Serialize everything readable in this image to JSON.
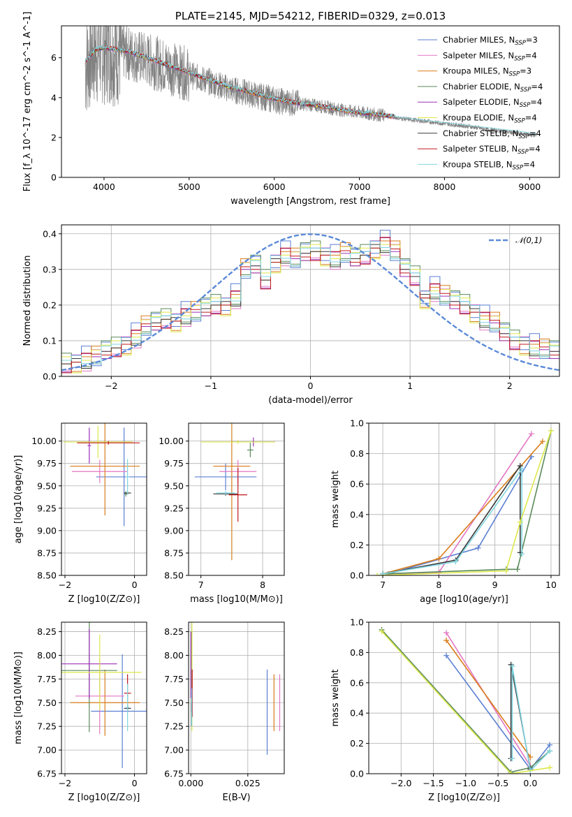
{
  "chart_data": [
    {
      "type": "line",
      "title": "PLATE=2145, MJD=54212, FIBERID=0329, z=0.013",
      "xlabel": "wavelength [Angstrom, rest frame]",
      "ylabel": "Flux [f_λ 10^-17 erg cm^-2 s^-1 A^-1]",
      "xlim": [
        3500,
        9350
      ],
      "ylim": [
        0,
        7.6
      ],
      "xticks": [
        "4000",
        "5000",
        "6000",
        "7000",
        "8000",
        "9000"
      ],
      "yticks": [
        "0",
        "2",
        "4",
        "6"
      ],
      "grid": false,
      "legend_position": "top-right",
      "observed_spectrum": {
        "color": "#808080",
        "x": [
          3780,
          3850,
          3950,
          4050,
          4150,
          4300,
          4500,
          4700,
          4900,
          5100,
          5300,
          5500,
          5700,
          5900,
          6100,
          6300,
          6500,
          6700,
          6900,
          7100,
          7300,
          7500,
          7700,
          7900,
          8100,
          8300,
          8500,
          8700,
          8900,
          9080
        ],
        "y": [
          5.6,
          6.2,
          6.4,
          6.4,
          6.3,
          6.2,
          5.9,
          5.6,
          5.3,
          5.0,
          4.7,
          4.4,
          4.2,
          4.0,
          3.8,
          3.7,
          3.6,
          3.45,
          3.3,
          3.2,
          3.1,
          2.95,
          2.85,
          2.75,
          2.65,
          2.55,
          2.4,
          2.3,
          2.2,
          2.1
        ]
      },
      "series": [
        {
          "name": "Chabrier MILES, N_SSP=3",
          "color": "#5b7fd3"
        },
        {
          "name": "Salpeter MILES, N_SSP=4",
          "color": "#e377c2"
        },
        {
          "name": "Kroupa MILES, N_SSP=3",
          "color": "#d97d1a"
        },
        {
          "name": "Chabrier ELODIE, N_SSP=4",
          "color": "#5a8a5a"
        },
        {
          "name": "Salpeter ELODIE, N_SSP=4",
          "color": "#9b30b9"
        },
        {
          "name": "Kroupa ELODIE, N_SSP=4",
          "color": "#dde84a"
        },
        {
          "name": "Chabrier STELIB, N_SSP=4",
          "color": "#3a3a3a"
        },
        {
          "name": "Salpeter STELIB, N_SSP=4",
          "color": "#c0191e"
        },
        {
          "name": "Kroupa STELIB, N_SSP=4",
          "color": "#7fd6e0"
        }
      ],
      "model_x": [
        3780,
        3900,
        4000,
        4100,
        4300,
        4500,
        4700,
        4900,
        5100,
        5300,
        5500,
        5700,
        5900,
        6100,
        6300,
        6500,
        6700,
        6900,
        7100,
        7300,
        7420
      ],
      "model_y": [
        5.8,
        6.4,
        6.5,
        6.45,
        6.3,
        6.0,
        5.7,
        5.4,
        5.1,
        4.8,
        4.5,
        4.3,
        4.05,
        3.85,
        3.7,
        3.6,
        3.45,
        3.3,
        3.2,
        3.1,
        3.05
      ],
      "stelib_tail": {
        "x": [
          7420,
          7700,
          8000,
          8300,
          8600,
          8900,
          9080
        ],
        "y": [
          3.05,
          2.9,
          2.75,
          2.6,
          2.45,
          2.3,
          2.2
        ]
      }
    },
    {
      "type": "bar",
      "xlabel": "(data-model)/error",
      "ylabel": "Normed distribution",
      "xlim": [
        -2.5,
        2.5
      ],
      "ylim": [
        0,
        0.425
      ],
      "xticks": [
        "−2",
        "−1",
        "0",
        "1",
        "2"
      ],
      "yticks": [
        "0.0",
        "0.1",
        "0.2",
        "0.3",
        "0.4"
      ],
      "grid": true,
      "legend_position": "top-right",
      "reference_curve": {
        "name": "𝒩(0,1)",
        "color": "#5b8ad8",
        "style": "dashed"
      },
      "bin_edges_start": -2.5,
      "bin_width": 0.1,
      "histogram": [
        0.035,
        0.04,
        0.045,
        0.055,
        0.07,
        0.08,
        0.09,
        0.11,
        0.14,
        0.15,
        0.16,
        0.155,
        0.17,
        0.18,
        0.19,
        0.2,
        0.2,
        0.22,
        0.3,
        0.31,
        0.27,
        0.32,
        0.34,
        0.33,
        0.345,
        0.35,
        0.34,
        0.33,
        0.345,
        0.33,
        0.34,
        0.36,
        0.37,
        0.35,
        0.3,
        0.28,
        0.22,
        0.24,
        0.225,
        0.21,
        0.2,
        0.18,
        0.16,
        0.15,
        0.12,
        0.1,
        0.09,
        0.08,
        0.075,
        0.07
      ],
      "series": [
        {
          "color": "#5b7fd3",
          "offsets": [
            0.01,
            -0.01,
            0.02,
            -0.02,
            0.015
          ]
        },
        {
          "color": "#e377c2",
          "offsets": [
            -0.01,
            0.02,
            -0.02,
            0.01,
            0.0
          ]
        },
        {
          "color": "#d97d1a",
          "offsets": [
            0.0,
            -0.015,
            0.01,
            0.02,
            -0.01
          ]
        },
        {
          "color": "#5a8a5a",
          "offsets": [
            0.015,
            0.0,
            -0.01,
            -0.015,
            0.02
          ]
        },
        {
          "color": "#9b30b9",
          "offsets": [
            -0.015,
            0.01,
            0.015,
            0.0,
            -0.02
          ]
        },
        {
          "color": "#dde84a",
          "offsets": [
            0.02,
            -0.02,
            0.0,
            0.015,
            0.01
          ]
        },
        {
          "color": "#3a3a3a",
          "offsets": [
            0.0,
            0.01,
            -0.015,
            -0.01,
            0.0
          ]
        },
        {
          "color": "#c0191e",
          "offsets": [
            -0.02,
            0.0,
            0.02,
            0.005,
            -0.005
          ]
        },
        {
          "color": "#7fd6e0",
          "offsets": [
            0.005,
            0.015,
            -0.005,
            -0.02,
            0.01
          ]
        }
      ]
    },
    {
      "type": "scatter",
      "panel": "age-vs-Z",
      "xlabel": "Z [log10(Z/Z⊙)]",
      "ylabel": "age  [log10(age/yr)]",
      "xlim": [
        -2.1,
        0.35
      ],
      "ylim": [
        8.5,
        10.2
      ],
      "xticks": [
        "−2",
        "0"
      ],
      "yticks": [
        "8.50",
        "8.75",
        "9.00",
        "9.25",
        "9.50",
        "9.75",
        "10.00"
      ],
      "grid": true,
      "points": [
        {
          "color": "#5b7fd3",
          "x": -0.3,
          "y": 9.6,
          "xerr": 0.8,
          "yerr": 0.55
        },
        {
          "color": "#e377c2",
          "x": -1.0,
          "y": 9.66,
          "xerr": 0.8,
          "yerr": 0.13
        },
        {
          "color": "#d97d1a",
          "x": -0.85,
          "y": 9.72,
          "xerr": 1.0,
          "yerr": 0.55
        },
        {
          "color": "#5a8a5a",
          "x": -0.25,
          "y": 9.41,
          "xerr": 0.05,
          "yerr": 0.03
        },
        {
          "color": "#9b30b9",
          "x": -1.3,
          "y": 9.95,
          "xerr": 0.05,
          "yerr": 0.2
        },
        {
          "color": "#dde84a",
          "x": -1.05,
          "y": 9.99,
          "xerr": 1.0,
          "yerr": 0.18
        },
        {
          "color": "#3a3a3a",
          "x": -0.2,
          "y": 9.42,
          "xerr": 0.1,
          "yerr": 0.02
        },
        {
          "color": "#c0191e",
          "x": -0.75,
          "y": 9.98,
          "xerr": 0.9,
          "yerr": 0.02
        },
        {
          "color": "#7fd6e0",
          "x": -0.2,
          "y": 9.6,
          "xerr": 0.05,
          "yerr": 0.2
        }
      ]
    },
    {
      "type": "scatter",
      "panel": "age-vs-mass",
      "xlabel": "mass [log10(M/M⊙)]",
      "ylabel": "",
      "xlim": [
        6.8,
        8.35
      ],
      "ylim": [
        8.5,
        10.2
      ],
      "xticks": [
        "7",
        "8"
      ],
      "yticks": [
        "8.50",
        "8.75",
        "9.00",
        "9.25",
        "9.50",
        "9.75",
        "10.00"
      ],
      "grid": true,
      "points": [
        {
          "color": "#5b7fd3",
          "x": 7.4,
          "y": 9.6,
          "xerr": 0.5,
          "yerr": 0.15
        },
        {
          "color": "#e377c2",
          "x": 7.6,
          "y": 9.66,
          "xerr": 0.3,
          "yerr": 0.13
        },
        {
          "color": "#d97d1a",
          "x": 7.5,
          "y": 9.72,
          "xerr": 0.3,
          "yerr": 1.05
        },
        {
          "color": "#5a8a5a",
          "x": 7.8,
          "y": 9.9,
          "xerr": 0.05,
          "yerr": 0.08
        },
        {
          "color": "#9b30b9",
          "x": 7.85,
          "y": 9.99,
          "xerr": 0.35,
          "yerr": 0.05
        },
        {
          "color": "#dde84a",
          "x": 7.6,
          "y": 9.99,
          "xerr": 0.6,
          "yerr": 0.02
        },
        {
          "color": "#3a3a3a",
          "x": 7.4,
          "y": 9.41,
          "xerr": 0.2,
          "yerr": 0.02
        },
        {
          "color": "#c0191e",
          "x": 7.6,
          "y": 9.4,
          "xerr": 0.15,
          "yerr": 0.3
        },
        {
          "color": "#7fd6e0",
          "x": 7.4,
          "y": 9.42,
          "xerr": 0.15,
          "yerr": 0.02
        }
      ]
    },
    {
      "type": "line",
      "panel": "mass-weight-vs-age",
      "xlabel": "age  [log10(age/yr)]",
      "ylabel": "mass weight",
      "xlim": [
        6.75,
        10.15
      ],
      "ylim": [
        0,
        1.0
      ],
      "xticks": [
        "7",
        "8",
        "9",
        "10"
      ],
      "yticks": [
        "0.0",
        "0.2",
        "0.4",
        "0.6",
        "0.8",
        "1.0"
      ],
      "grid": true,
      "series": [
        {
          "color": "#5b7fd3",
          "x": [
            7.1,
            8.7,
            9.65
          ],
          "y": [
            0.01,
            0.18,
            0.78
          ]
        },
        {
          "color": "#e377c2",
          "x": [
            7.0,
            8.0,
            9.65
          ],
          "y": [
            0.01,
            0.02,
            0.93
          ]
        },
        {
          "color": "#d97d1a",
          "x": [
            7.0,
            8.0,
            9.85
          ],
          "y": [
            0.01,
            0.11,
            0.88
          ]
        },
        {
          "color": "#5a8a5a",
          "x": [
            7.0,
            9.2,
            9.4,
            10.0
          ],
          "y": [
            0.01,
            0.04,
            0.04,
            0.95
          ]
        },
        {
          "color": "#3a3a3a",
          "x": [
            7.0,
            8.3,
            9.45,
            9.45
          ],
          "y": [
            0.01,
            0.1,
            0.72,
            0.15
          ]
        },
        {
          "color": "#7fd6e0",
          "x": [
            7.0,
            8.3,
            9.48,
            9.48
          ],
          "y": [
            0.01,
            0.09,
            0.7,
            0.14
          ]
        },
        {
          "color": "#dde84a",
          "x": [
            6.9,
            9.2,
            9.45,
            10.0
          ],
          "y": [
            0.0,
            0.03,
            0.35,
            0.95
          ]
        }
      ]
    },
    {
      "type": "scatter",
      "panel": "mass-vs-Z",
      "xlabel": "Z [log10(Z/Z⊙)]",
      "ylabel": "mass [log10(M/M⊙)]",
      "xlim": [
        -2.1,
        0.35
      ],
      "ylim": [
        6.75,
        8.35
      ],
      "xticks": [
        "−2",
        "0"
      ],
      "yticks": [
        "6.75",
        "7.00",
        "7.25",
        "7.50",
        "7.75",
        "8.00",
        "8.25"
      ],
      "grid": true,
      "points": [
        {
          "color": "#5b7fd3",
          "x": -0.35,
          "y": 7.41,
          "xerr": 0.9,
          "yerr": 0.6
        },
        {
          "color": "#e377c2",
          "x": -1.0,
          "y": 7.57,
          "xerr": 0.7,
          "yerr": 0.4
        },
        {
          "color": "#d97d1a",
          "x": -0.85,
          "y": 7.5,
          "xerr": 1.0,
          "yerr": 0.35
        },
        {
          "color": "#5a8a5a",
          "x": -1.3,
          "y": 7.84,
          "xerr": 0.8,
          "yerr": 0.65
        },
        {
          "color": "#9b30b9",
          "x": -1.3,
          "y": 7.91,
          "xerr": 0.8,
          "yerr": 0.37
        },
        {
          "color": "#dde84a",
          "x": -1.0,
          "y": 7.82,
          "xerr": 1.2,
          "yerr": 0.4
        },
        {
          "color": "#3a3a3a",
          "x": -0.2,
          "y": 7.44,
          "xerr": 0.1,
          "yerr": 0.02
        },
        {
          "color": "#c0191e",
          "x": -0.2,
          "y": 7.6,
          "xerr": 0.1,
          "yerr": 0.2
        },
        {
          "color": "#7fd6e0",
          "x": -0.2,
          "y": 7.45,
          "xerr": 0.05,
          "yerr": 0.25
        }
      ]
    },
    {
      "type": "scatter",
      "panel": "mass-vs-EBV",
      "xlabel": "E(B-V)",
      "ylabel": "",
      "xlim": [
        -0.001,
        0.041
      ],
      "ylim": [
        6.75,
        8.35
      ],
      "xticks": [
        "0.000",
        "0.025"
      ],
      "yticks": [
        "6.75",
        "7.00",
        "7.25",
        "7.50",
        "7.75",
        "8.00",
        "8.25"
      ],
      "grid": true,
      "points": [
        {
          "color": "#5b7fd3",
          "x": 0.0335,
          "y": 7.4,
          "xerr": 0,
          "yerr": 0.45
        },
        {
          "color": "#e377c2",
          "x": 0.039,
          "y": 7.5,
          "xerr": 0,
          "yerr": 0.3
        },
        {
          "color": "#d97d1a",
          "x": 0.0365,
          "y": 7.5,
          "xerr": 0,
          "yerr": 0.3
        },
        {
          "color": "#5a8a5a",
          "x": 0.0003,
          "y": 7.75,
          "xerr": 0,
          "yerr": 0.5
        },
        {
          "color": "#9b30b9",
          "x": 0.0,
          "y": 7.9,
          "xerr": 0,
          "yerr": 0.35
        },
        {
          "color": "#dde84a",
          "x": 0.0005,
          "y": 7.8,
          "xerr": 0,
          "yerr": 0.6
        },
        {
          "color": "#3a3a3a",
          "x": 0.0003,
          "y": 7.45,
          "xerr": 0,
          "yerr": 0.05
        },
        {
          "color": "#c0191e",
          "x": 0.0006,
          "y": 7.6,
          "xerr": 0,
          "yerr": 0.25
        },
        {
          "color": "#7fd6e0",
          "x": 0.0004,
          "y": 7.45,
          "xerr": 0,
          "yerr": 0.2
        }
      ]
    },
    {
      "type": "line",
      "panel": "mass-weight-vs-Z",
      "xlabel": "Z [log10(Z/Z⊙)]",
      "ylabel": "mass weight",
      "xlim": [
        -2.5,
        0.45
      ],
      "ylim": [
        0,
        1.0
      ],
      "xticks": [
        "−2.0",
        "−1.5",
        "−1.0",
        "−0.5",
        "0.0"
      ],
      "yticks": [
        "0.0",
        "0.2",
        "0.4",
        "0.6",
        "0.8",
        "1.0"
      ],
      "grid": true,
      "series": [
        {
          "color": "#5b7fd3",
          "x": [
            -1.3,
            0.0,
            0.3
          ],
          "y": [
            0.78,
            0.03,
            0.19
          ]
        },
        {
          "color": "#e377c2",
          "x": [
            -1.3,
            0.0
          ],
          "y": [
            0.93,
            0.05
          ]
        },
        {
          "color": "#d97d1a",
          "x": [
            -1.3,
            0.0
          ],
          "y": [
            0.88,
            0.11
          ]
        },
        {
          "color": "#5a8a5a",
          "x": [
            -2.3,
            -0.3,
            0.0,
            0.3
          ],
          "y": [
            0.95,
            0.01,
            0.04,
            0.15
          ]
        },
        {
          "color": "#3a3a3a",
          "x": [
            -0.3,
            -0.3,
            0.0
          ],
          "y": [
            0.1,
            0.72,
            0.03
          ]
        },
        {
          "color": "#7fd6e0",
          "x": [
            -0.28,
            -0.28,
            0.0,
            0.3
          ],
          "y": [
            0.1,
            0.71,
            0.02,
            0.15
          ]
        },
        {
          "color": "#dde84a",
          "x": [
            -2.3,
            -0.3,
            0.3
          ],
          "y": [
            0.94,
            0.0,
            0.04
          ]
        }
      ]
    }
  ]
}
